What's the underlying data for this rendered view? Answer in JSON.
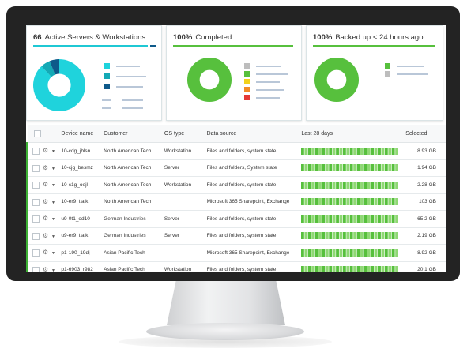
{
  "cards": [
    {
      "count": "66",
      "label": "Active Servers & Workstations",
      "bar_color": "#1fc8d4",
      "bar_secondary_color": "#0e5a8a",
      "donut": [
        {
          "color": "#1fd3dc",
          "share": 0.88
        },
        {
          "color": "#14a9b5",
          "share": 0.06
        },
        {
          "color": "#0e5a8a",
          "share": 0.06
        }
      ],
      "legend_colors": [
        "#1fd3dc",
        "#14a9b5",
        "#0e5a8a"
      ]
    },
    {
      "count": "100%",
      "label": "Completed",
      "bar_color": "#57c03d",
      "donut": [
        {
          "color": "#57c03d",
          "share": 1.0
        }
      ],
      "legend_colors": [
        "#bdbdbd",
        "#57c03d",
        "#f2d21c",
        "#f28c28",
        "#e53935"
      ]
    },
    {
      "count": "100%",
      "label": "Backed up < 24 hours ago",
      "bar_color": "#57c03d",
      "donut": [
        {
          "color": "#57c03d",
          "share": 1.0
        }
      ],
      "legend_colors": [
        "#57c03d",
        "#bdbdbd"
      ]
    }
  ],
  "table": {
    "headers": [
      "Device name",
      "Customer",
      "OS type",
      "Data source",
      "Last 28 days",
      "Selected"
    ],
    "rows": [
      {
        "device": "10-cdg_jblsn",
        "customer": "North American Tech",
        "os": "Workstation",
        "source": "Files and folders, system state",
        "selected": "8.93 GB"
      },
      {
        "device": "10-cjg_besmz",
        "customer": "North American Tech",
        "os": "Server",
        "source": "Files and folders, System state",
        "selected": "1.94 GB"
      },
      {
        "device": "10-c1g_oejl",
        "customer": "North American Tech",
        "os": "Workstation",
        "source": "Files and folders, system state",
        "selected": "2.28 GB"
      },
      {
        "device": "10-er9_tlajk",
        "customer": "North American Tech",
        "os": "",
        "source": "Microsoft 365 Sharepoint, Exchange",
        "selected": "103 GB"
      },
      {
        "device": "u9-0t1_od10",
        "customer": "German Industries",
        "os": "Server",
        "source": "Files and folders, system state",
        "selected": "65.2 GB"
      },
      {
        "device": "u9-er9_tlajk",
        "customer": "German Industries",
        "os": "Server",
        "source": "Files and folders, system state",
        "selected": "2.19 GB"
      },
      {
        "device": "p1-190_19dj",
        "customer": "Asian Pacific Tech",
        "os": "",
        "source": "Microsoft 365 Sharepoint, Exchange",
        "selected": "8.92 GB"
      },
      {
        "device": "p1-6903_r982",
        "customer": "Asian Pacific Tech",
        "os": "Workstation",
        "source": "Files and folders, system state",
        "selected": "20.1 GB"
      }
    ],
    "strip_colors": [
      "#57c03d",
      "#8fd874"
    ],
    "accent_color": "#3cb034"
  },
  "icons": {
    "row_menu": "gear-icon",
    "menu_caret": "caret-down-icon"
  }
}
